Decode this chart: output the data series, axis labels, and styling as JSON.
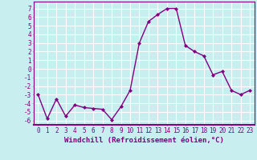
{
  "x": [
    0,
    1,
    2,
    3,
    4,
    5,
    6,
    7,
    8,
    9,
    10,
    11,
    12,
    13,
    14,
    15,
    16,
    17,
    18,
    19,
    20,
    21,
    22,
    23
  ],
  "y": [
    -3.0,
    -5.8,
    -3.5,
    -5.5,
    -4.2,
    -4.5,
    -4.6,
    -4.7,
    -5.9,
    -4.4,
    -2.5,
    3.0,
    5.5,
    6.3,
    7.0,
    7.0,
    2.7,
    2.0,
    1.5,
    -0.7,
    -0.3,
    -2.5,
    -3.0,
    -2.5
  ],
  "line_color": "#800080",
  "marker": "D",
  "markersize": 2,
  "linewidth": 1.0,
  "xlabel": "Windchill (Refroidissement éolien,°C)",
  "xlim": [
    -0.5,
    23.5
  ],
  "ylim": [
    -6.5,
    7.8
  ],
  "yticks": [
    -6,
    -5,
    -4,
    -3,
    -2,
    -1,
    0,
    1,
    2,
    3,
    4,
    5,
    6,
    7
  ],
  "xtick_labels": [
    "0",
    "1",
    "2",
    "3",
    "4",
    "5",
    "6",
    "7",
    "8",
    "9",
    "10",
    "11",
    "12",
    "13",
    "14",
    "15",
    "16",
    "17",
    "18",
    "19",
    "20",
    "21",
    "22",
    "23"
  ],
  "bg_color": "#c8eef0",
  "grid_color": "#ffffff",
  "line_border_color": "#800080",
  "tick_color": "#800080",
  "label_color": "#800080",
  "xlabel_fontsize": 6.5,
  "tick_fontsize": 5.5
}
